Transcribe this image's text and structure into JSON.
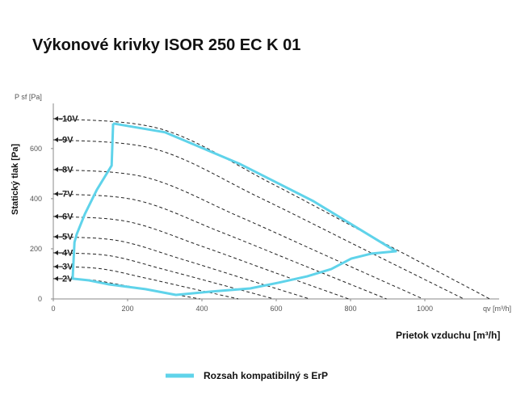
{
  "chart_data": {
    "type": "line",
    "title": "Výkonové krivky ISOR 250 EC K 01",
    "y_label": "Statický tlak [Pa]",
    "y_unit_label": "P sf [Pa]",
    "x_unit_label": "qv [m³/h]",
    "x_label": "Prietok vzduchu [m³/h]",
    "xlim": [
      0,
      1200
    ],
    "ylim": [
      0,
      780
    ],
    "xticks": [
      0,
      200,
      400,
      600,
      800,
      1000
    ],
    "yticks": [
      0,
      200,
      400,
      600
    ],
    "series": [
      {
        "name": "10V",
        "color": "#222222",
        "dashed": true,
        "x": [
          0,
          294,
          588,
          881,
          1175
        ],
        "values": [
          719,
          676,
          460,
          230,
          0
        ]
      },
      {
        "name": "9V",
        "color": "#222222",
        "dashed": true,
        "x": [
          0,
          276,
          553,
          829,
          1105
        ],
        "values": [
          635,
          597,
          406,
          203,
          0
        ]
      },
      {
        "name": "8V",
        "color": "#222222",
        "dashed": true,
        "x": [
          0,
          249,
          498,
          746,
          995
        ],
        "values": [
          516,
          485,
          330,
          165,
          0
        ]
      },
      {
        "name": "7V",
        "color": "#222222",
        "dashed": true,
        "x": [
          0,
          224,
          449,
          673,
          897
        ],
        "values": [
          419,
          394,
          268,
          134,
          0
        ]
      },
      {
        "name": "6V",
        "color": "#222222",
        "dashed": true,
        "x": [
          0,
          199,
          398,
          596,
          795
        ],
        "values": [
          329,
          309,
          211,
          105,
          0
        ]
      },
      {
        "name": "5V",
        "color": "#222222",
        "dashed": true,
        "x": [
          0,
          173,
          345,
          518,
          690
        ],
        "values": [
          248,
          233,
          159,
          79,
          0
        ]
      },
      {
        "name": "4V",
        "color": "#222222",
        "dashed": true,
        "x": [
          0,
          149,
          297,
          446,
          594
        ],
        "values": [
          184,
          173,
          118,
          59,
          0
        ]
      },
      {
        "name": "3V",
        "color": "#222222",
        "dashed": true,
        "x": [
          0,
          125,
          249,
          374,
          498
        ],
        "values": [
          129,
          121,
          83,
          41,
          0
        ]
      },
      {
        "name": "2V",
        "color": "#222222",
        "dashed": true,
        "x": [
          0,
          99,
          198,
          296,
          395
        ],
        "values": [
          81,
          76,
          52,
          26,
          0
        ]
      }
    ],
    "envelope": {
      "name": "Rozsah kompatibilný s ErP",
      "color": "#5fd3ea",
      "x": [
        161,
        157,
        117,
        85,
        63,
        57,
        52,
        96,
        150,
        248,
        330,
        422,
        530,
        607,
        683,
        748,
        802,
        857,
        922,
        700,
        500,
        300,
        161
      ],
      "values": [
        700,
        532,
        435,
        339,
        258,
        226,
        81,
        74,
        58,
        39,
        16,
        29,
        42,
        65,
        90,
        119,
        161,
        181,
        190,
        390,
        540,
        665,
        700
      ]
    }
  }
}
